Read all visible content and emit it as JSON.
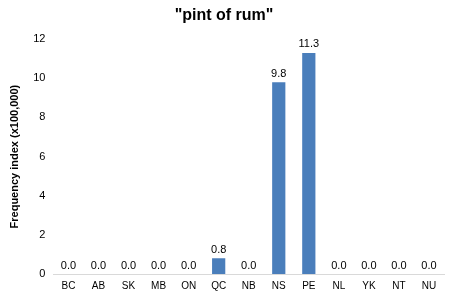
{
  "chart_data": {
    "type": "bar",
    "title": "\"pint of rum\"",
    "y_label": "Frequency index (x100,000)",
    "categories": [
      "BC",
      "AB",
      "SK",
      "MB",
      "ON",
      "QC",
      "NB",
      "NS",
      "PE",
      "NL",
      "YK",
      "NT",
      "NU"
    ],
    "values": [
      0,
      0,
      0,
      0,
      0,
      0.8,
      0,
      9.8,
      11.3,
      0,
      0,
      0,
      0
    ],
    "value_labels": [
      "0.0",
      "0.0",
      "0.0",
      "0.0",
      "0.0",
      "0.8",
      "0.0",
      "9.8",
      "11.3",
      "0.0",
      "0.0",
      "0.0",
      "0.0"
    ],
    "color": "#4a7ebb",
    "ylim": [
      0,
      12
    ],
    "yticks": [
      0,
      2,
      4,
      6,
      8,
      10,
      12
    ],
    "grid": false,
    "data_labels": true
  }
}
